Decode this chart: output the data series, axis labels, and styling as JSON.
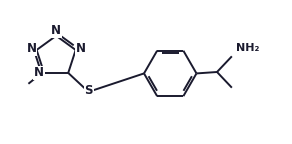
{
  "bg_color": "#ffffff",
  "bond_color": "#1a1a2e",
  "N_color": "#1a1a2e",
  "S_color": "#1a1a2e",
  "lw": 1.4,
  "fig_width": 2.92,
  "fig_height": 1.44,
  "dpi": 100,
  "xlim": [
    0,
    10
  ],
  "ylim": [
    0,
    5
  ]
}
